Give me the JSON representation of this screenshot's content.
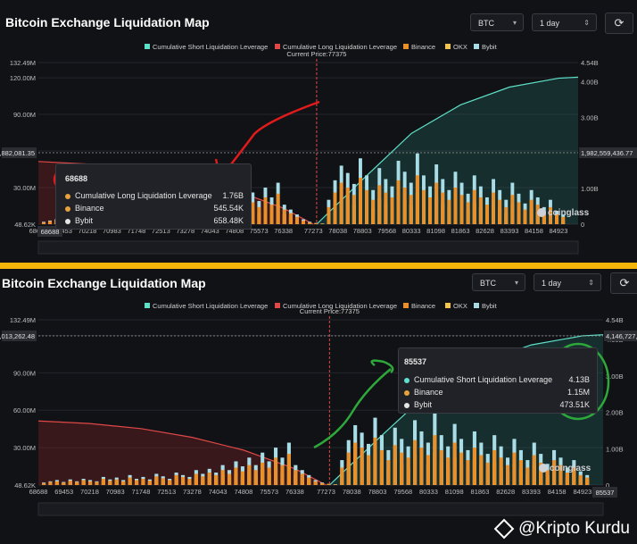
{
  "panels": [
    {
      "title": "Bitcoin Exchange Liquidation Map",
      "coin_select": "BTC",
      "period_select": "1 day",
      "legend": [
        "Cumulative Short Liquidation Leverage",
        "Cumulative Long Liquidation Leverage",
        "Binance",
        "OKX",
        "Bybit"
      ],
      "current_price_label": "Current Price:77375",
      "crosshair_left_value": "57,882,081.35",
      "crosshair_right_value": "1,982,559,436.77",
      "tooltip": {
        "price": "68688",
        "rows": [
          {
            "label": "Cumulative Long Liquidation Leverage",
            "value": "1.76B",
            "color": "#e9a23b"
          },
          {
            "label": "Binance",
            "value": "545.54K",
            "color": "#e9a23b"
          },
          {
            "label": "Bybit",
            "value": "658.48K",
            "color": "#e6e6e6"
          }
        ]
      },
      "x_start_label": "68688",
      "logo_text": "coinglass"
    },
    {
      "title": "Bitcoin Exchange Liquidation Map",
      "coin_select": "BTC",
      "period_select": "1 day",
      "legend": [
        "Cumulative Short Liquidation Leverage",
        "Cumulative Long Liquidation Leverage",
        "Binance",
        "OKX",
        "Bybit"
      ],
      "current_price_label": "Current Price:77375",
      "crosshair_left_value": "121,013,262.48",
      "crosshair_right_value": "4,146,727,371.57",
      "tooltip": {
        "price": "85537",
        "rows": [
          {
            "label": "Cumulative Short Liquidation Leverage",
            "value": "4.13B",
            "color": "#5ee0d0"
          },
          {
            "label": "Binance",
            "value": "1.15M",
            "color": "#e9a23b"
          },
          {
            "label": "Bybit",
            "value": "473.51K",
            "color": "#e6e6e6"
          }
        ]
      },
      "x_end_label": "85537",
      "logo_text": "coinglass"
    }
  ],
  "watermark": "@Kripto Kurdu",
  "colors": {
    "short_cum": "#5ee0c8",
    "long_cum": "#e04848",
    "binance": "#e9902b",
    "okx": "#f3c64a",
    "bybit": "#a8dce6",
    "annotation_red": "#e01b1b",
    "annotation_green": "#2ea83a",
    "accent_bar": "#f5b40a"
  },
  "chart_data": [
    {
      "type": "bar",
      "title": "Bitcoin Exchange Liquidation Map",
      "x_tick_labels": [
        "68688",
        "69453",
        "70218",
        "70983",
        "71748",
        "72513",
        "73278",
        "74043",
        "74808",
        "75573",
        "76338",
        "77273",
        "78038",
        "78803",
        "79568",
        "80333",
        "81098",
        "81863",
        "82628",
        "83393",
        "84158",
        "84923"
      ],
      "y_left_ticks": [
        "48.62K",
        "30.00M",
        "60.00M",
        "90.00M",
        "120.00M",
        "132.49M"
      ],
      "y_left_max_label": "132.49M",
      "y_right_ticks": [
        "0",
        "1.00B",
        "2.00B",
        "3.00B",
        "4.00B",
        "4.54B"
      ],
      "y_right_max_label": "4.54B",
      "ylim_left": [
        0,
        132.49
      ],
      "ylim_right": [
        0,
        4.54
      ],
      "current_price": 77375,
      "series": [
        {
          "name": "Cumulative Long Liquidation Leverage",
          "kind": "area",
          "x": [
            68688,
            70218,
            71748,
            73278,
            74808,
            76338,
            77273
          ],
          "values_billions": [
            1.76,
            1.69,
            1.55,
            1.31,
            0.96,
            0.45,
            0.0
          ]
        },
        {
          "name": "Cumulative Short Liquidation Leverage",
          "kind": "area",
          "x": [
            77375,
            78803,
            80333,
            81863,
            83393,
            84923,
            85537
          ],
          "values_billions": [
            0.0,
            1.25,
            2.55,
            3.35,
            3.85,
            4.1,
            4.13
          ]
        },
        {
          "name": "Binance",
          "kind": "bar",
          "scale": "left_millions"
        },
        {
          "name": "OKX",
          "kind": "bar",
          "scale": "left_millions"
        },
        {
          "name": "Bybit",
          "kind": "bar",
          "scale": "left_millions"
        }
      ],
      "exchange_bars": {
        "binance_millions": [
          1.5,
          2.5,
          3.0,
          2.0,
          3.5,
          2.5,
          4.0,
          3.0,
          2.5,
          5.0,
          3.5,
          4.5,
          3.0,
          6.0,
          4.0,
          5.0,
          3.5,
          7.0,
          5.5,
          4.0,
          8.0,
          6.5,
          5.0,
          9.0,
          7.0,
          10.0,
          8.0,
          12.0,
          9.0,
          14.0,
          11.0,
          16.0,
          12.0,
          18.0,
          14.0,
          22.0,
          16.0,
          25.0,
          12.0,
          9.0,
          6.0,
          3.0,
          1.5,
          0.8,
          0.5,
          14.0,
          26.0,
          34.0,
          30.0,
          24.0,
          38.0,
          28.0,
          20.0,
          32.0,
          26.0,
          22.0,
          36.0,
          30.0,
          24.0,
          40.0,
          28.0,
          22.0,
          34.0,
          26.0,
          20.0,
          30.0,
          24.0,
          18.0,
          28.0,
          22.0,
          16.0,
          26.0,
          20.0,
          14.0,
          24.0,
          18.0,
          12.0,
          20.0,
          16.0,
          10.0,
          14.0,
          8.0,
          6.0
        ],
        "okx_millions": [
          1.0,
          1.5,
          2.0,
          1.5,
          2.0,
          1.5,
          2.5,
          2.0,
          1.5,
          3.0,
          2.0,
          3.0,
          2.0,
          4.0,
          2.5,
          3.5,
          2.5,
          4.5,
          3.5,
          2.5,
          5.0,
          4.0,
          3.0,
          6.0,
          4.5,
          6.5,
          5.0,
          8.0,
          6.0,
          9.0,
          7.0,
          10.0,
          8.0,
          12.0,
          9.0,
          14.0,
          10.0,
          16.0,
          8.0,
          6.0,
          4.0,
          2.0,
          1.0,
          0.5,
          0.3,
          9.0,
          17.0,
          22.0,
          20.0,
          16.0,
          25.0,
          18.0,
          13.0,
          21.0,
          17.0,
          14.0,
          24.0,
          20.0,
          16.0,
          26.0,
          18.0,
          14.0,
          22.0,
          17.0,
          13.0,
          20.0,
          16.0,
          12.0,
          18.0,
          14.0,
          10.0,
          17.0,
          13.0,
          9.0,
          16.0,
          12.0,
          8.0,
          13.0,
          10.0,
          6.0,
          9.0,
          5.0,
          4.0
        ],
        "bybit_millions": [
          2.0,
          3.0,
          4.0,
          2.5,
          4.5,
          3.0,
          5.0,
          4.0,
          3.0,
          6.5,
          4.5,
          6.0,
          4.0,
          8.0,
          5.0,
          6.5,
          4.5,
          9.0,
          7.0,
          5.0,
          10.0,
          8.0,
          6.5,
          12.0,
          9.0,
          13.0,
          10.0,
          16.0,
          12.0,
          19.0,
          15.0,
          22.0,
          16.0,
          26.0,
          19.0,
          30.0,
          22.0,
          34.0,
          16.0,
          12.0,
          8.0,
          4.0,
          2.0,
          1.0,
          0.6,
          20.0,
          36.0,
          48.0,
          42.0,
          33.0,
          54.0,
          40.0,
          28.0,
          46.0,
          37.0,
          31.0,
          52.0,
          43.0,
          34.0,
          58.0,
          40.0,
          31.0,
          49.0,
          37.0,
          28.0,
          43.0,
          34.0,
          25.0,
          40.0,
          31.0,
          22.0,
          37.0,
          28.0,
          20.0,
          34.0,
          25.0,
          17.0,
          28.0,
          22.0,
          14.0,
          20.0,
          11.0,
          8.0
        ]
      },
      "legend_position": "top-center",
      "grid": true
    },
    {
      "type": "bar",
      "title": "Bitcoin Exchange Liquidation Map",
      "x_tick_labels": [
        "68688",
        "69453",
        "70218",
        "70983",
        "71748",
        "72513",
        "73278",
        "74043",
        "74808",
        "75573",
        "76338",
        "77273",
        "78038",
        "78803",
        "79568",
        "80333",
        "81098",
        "81863",
        "82628",
        "83393",
        "84158",
        "84923",
        "85537"
      ],
      "y_left_ticks": [
        "48.62K",
        "30.00M",
        "60.00M",
        "90.00M",
        "120.00M",
        "132.49M"
      ],
      "y_right_ticks": [
        "0",
        "1.00B",
        "2.00B",
        "3.00B",
        "4.00B",
        "4.54B"
      ],
      "ylim_left": [
        0,
        132.49
      ],
      "ylim_right": [
        0,
        4.54
      ],
      "current_price": 77375,
      "legend_position": "top-center",
      "grid": true
    }
  ]
}
